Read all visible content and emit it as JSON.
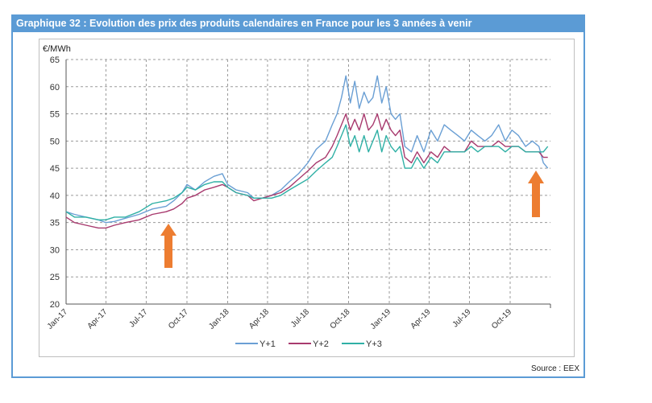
{
  "banner": {
    "title": "Graphique 32 : Evolution des prix des produits calendaires en France pour les 3 années à venir"
  },
  "source": "Source : EEX",
  "chart_data": {
    "type": "line",
    "ylabel": "€/MWh",
    "ylim": [
      20,
      65
    ],
    "yticks": [
      20,
      25,
      30,
      35,
      40,
      45,
      50,
      55,
      60,
      65
    ],
    "xlim": [
      "2017-01-01",
      "2019-12-31"
    ],
    "xticks": [
      "Jan-17",
      "Apr-17",
      "Jul-17",
      "Oct-17",
      "Jan-18",
      "Apr-18",
      "Jul-18",
      "Oct-18",
      "Jan-19",
      "Apr-19",
      "Jul-19",
      "Oct-19"
    ],
    "grid": true,
    "legend": "bottom",
    "series": [
      {
        "name": "Y+1",
        "color": "#6a9fd4",
        "x": [
          "2017-01-01",
          "2017-01-20",
          "2017-02-15",
          "2017-03-15",
          "2017-04-01",
          "2017-04-20",
          "2017-05-15",
          "2017-06-15",
          "2017-07-15",
          "2017-08-15",
          "2017-09-01",
          "2017-09-20",
          "2017-10-01",
          "2017-10-20",
          "2017-11-10",
          "2017-12-01",
          "2017-12-20",
          "2018-01-01",
          "2018-01-20",
          "2018-02-15",
          "2018-03-01",
          "2018-03-20",
          "2018-04-10",
          "2018-05-01",
          "2018-05-20",
          "2018-06-10",
          "2018-07-01",
          "2018-07-20",
          "2018-08-10",
          "2018-08-25",
          "2018-09-05",
          "2018-09-15",
          "2018-09-25",
          "2018-10-05",
          "2018-10-15",
          "2018-10-25",
          "2018-11-05",
          "2018-11-15",
          "2018-11-25",
          "2018-12-05",
          "2018-12-15",
          "2018-12-25",
          "2019-01-05",
          "2019-01-15",
          "2019-01-25",
          "2019-02-05",
          "2019-02-20",
          "2019-03-05",
          "2019-03-20",
          "2019-04-05",
          "2019-04-20",
          "2019-05-05",
          "2019-05-20",
          "2019-06-05",
          "2019-06-20",
          "2019-07-05",
          "2019-07-20",
          "2019-08-05",
          "2019-08-20",
          "2019-09-05",
          "2019-09-20",
          "2019-10-05",
          "2019-10-20",
          "2019-11-05",
          "2019-11-20",
          "2019-12-05",
          "2019-12-15",
          "2019-12-25"
        ],
        "values": [
          37,
          36.5,
          36,
          35.5,
          35,
          35.2,
          35.8,
          36.5,
          37.5,
          38,
          39,
          40.5,
          42,
          41,
          42.5,
          43.5,
          44,
          42,
          41,
          40.5,
          39.5,
          39.5,
          40,
          41,
          42.5,
          44,
          46,
          48.5,
          50,
          53,
          55,
          58,
          62,
          57,
          61,
          56,
          59,
          57,
          58,
          62,
          57,
          60,
          55,
          54,
          55,
          49,
          48,
          51,
          48,
          52,
          50,
          53,
          52,
          51,
          50,
          52,
          51,
          50,
          51,
          53,
          50,
          52,
          51,
          49,
          50,
          49,
          46,
          45
        ]
      },
      {
        "name": "Y+2",
        "color": "#a83a6e",
        "x": [
          "2017-01-01",
          "2017-01-20",
          "2017-02-15",
          "2017-03-15",
          "2017-04-01",
          "2017-04-20",
          "2017-05-15",
          "2017-06-15",
          "2017-07-15",
          "2017-08-15",
          "2017-09-01",
          "2017-09-20",
          "2017-10-01",
          "2017-10-20",
          "2017-11-10",
          "2017-12-01",
          "2017-12-20",
          "2018-01-01",
          "2018-01-20",
          "2018-02-15",
          "2018-03-01",
          "2018-03-20",
          "2018-04-10",
          "2018-05-01",
          "2018-05-20",
          "2018-06-10",
          "2018-07-01",
          "2018-07-20",
          "2018-08-10",
          "2018-08-25",
          "2018-09-05",
          "2018-09-15",
          "2018-09-25",
          "2018-10-05",
          "2018-10-15",
          "2018-10-25",
          "2018-11-05",
          "2018-11-15",
          "2018-11-25",
          "2018-12-05",
          "2018-12-15",
          "2018-12-25",
          "2019-01-05",
          "2019-01-15",
          "2019-01-25",
          "2019-02-05",
          "2019-02-20",
          "2019-03-05",
          "2019-03-20",
          "2019-04-05",
          "2019-04-20",
          "2019-05-05",
          "2019-05-20",
          "2019-06-05",
          "2019-06-20",
          "2019-07-05",
          "2019-07-20",
          "2019-08-05",
          "2019-08-20",
          "2019-09-05",
          "2019-09-20",
          "2019-10-05",
          "2019-10-20",
          "2019-11-05",
          "2019-11-20",
          "2019-12-05",
          "2019-12-15",
          "2019-12-25"
        ],
        "values": [
          36,
          35,
          34.5,
          34,
          34,
          34.5,
          35,
          35.5,
          36.5,
          37,
          37.5,
          38.5,
          39.5,
          40,
          41,
          41.5,
          42,
          41.5,
          40.5,
          40,
          39,
          39.5,
          40,
          40.5,
          41.5,
          43,
          44.5,
          46,
          47,
          49,
          51,
          53,
          55,
          52,
          54,
          52,
          55,
          52,
          53,
          55,
          52,
          54,
          52,
          51,
          52,
          47,
          46,
          48,
          46,
          48,
          47,
          49,
          48,
          48,
          48,
          50,
          49,
          49,
          49,
          50,
          49,
          49,
          49,
          48,
          48,
          48,
          47,
          47
        ]
      },
      {
        "name": "Y+3",
        "color": "#2fb0a5",
        "x": [
          "2017-01-01",
          "2017-01-20",
          "2017-02-15",
          "2017-03-15",
          "2017-04-01",
          "2017-04-20",
          "2017-05-15",
          "2017-06-15",
          "2017-07-15",
          "2017-08-15",
          "2017-09-01",
          "2017-09-20",
          "2017-10-01",
          "2017-10-20",
          "2017-11-10",
          "2017-12-01",
          "2017-12-20",
          "2018-01-01",
          "2018-01-20",
          "2018-02-15",
          "2018-03-01",
          "2018-03-20",
          "2018-04-10",
          "2018-05-01",
          "2018-05-20",
          "2018-06-10",
          "2018-07-01",
          "2018-07-20",
          "2018-08-10",
          "2018-08-25",
          "2018-09-05",
          "2018-09-15",
          "2018-09-25",
          "2018-10-05",
          "2018-10-15",
          "2018-10-25",
          "2018-11-05",
          "2018-11-15",
          "2018-11-25",
          "2018-12-05",
          "2018-12-15",
          "2018-12-25",
          "2019-01-05",
          "2019-01-15",
          "2019-01-25",
          "2019-02-05",
          "2019-02-20",
          "2019-03-05",
          "2019-03-20",
          "2019-04-05",
          "2019-04-20",
          "2019-05-05",
          "2019-05-20",
          "2019-06-05",
          "2019-06-20",
          "2019-07-05",
          "2019-07-20",
          "2019-08-05",
          "2019-08-20",
          "2019-09-05",
          "2019-09-20",
          "2019-10-05",
          "2019-10-20",
          "2019-11-05",
          "2019-11-20",
          "2019-12-05",
          "2019-12-15",
          "2019-12-25"
        ],
        "values": [
          37,
          36,
          36,
          35.5,
          35.5,
          36,
          36,
          37,
          38.5,
          39,
          39.5,
          40.5,
          41.5,
          41,
          42,
          42.5,
          42.5,
          41.5,
          40.5,
          40,
          39.5,
          39.5,
          39.5,
          40,
          41,
          42,
          43,
          44.5,
          46,
          47,
          49,
          51,
          53,
          49,
          51,
          48,
          51,
          48,
          50,
          52,
          48,
          51,
          49,
          48,
          49,
          45,
          45,
          47,
          45,
          47,
          46,
          48,
          48,
          48,
          48,
          49,
          48,
          49,
          49,
          49,
          48,
          49,
          49,
          48,
          48,
          48,
          48,
          49
        ]
      }
    ]
  }
}
